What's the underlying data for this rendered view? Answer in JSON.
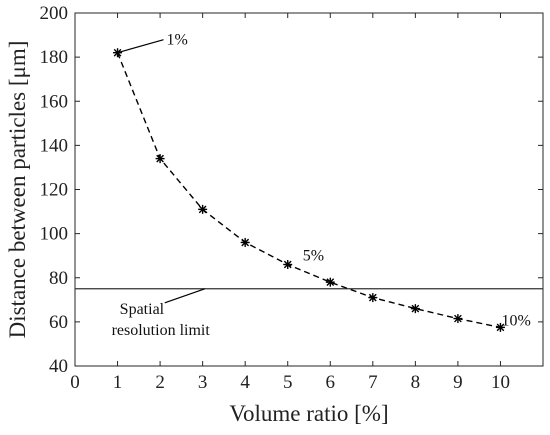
{
  "chart_data": {
    "type": "line",
    "xlabel": "Volume ratio [%]",
    "ylabel": "Distance between particles [μm]",
    "xlim": [
      0,
      11
    ],
    "ylim": [
      40,
      200
    ],
    "xticks": [
      0,
      1,
      2,
      3,
      4,
      5,
      6,
      7,
      8,
      9,
      10
    ],
    "yticks": [
      40,
      60,
      80,
      100,
      120,
      140,
      160,
      180,
      200
    ],
    "grid": false,
    "series": [
      {
        "x": [
          1,
          2,
          3,
          4,
          5,
          6,
          7,
          8,
          9,
          10
        ],
        "values": [
          182,
          134,
          111,
          96,
          86,
          78,
          71,
          66,
          61.5,
          57.5
        ],
        "line_style": "dashed",
        "marker": "asterisk",
        "color": "#000000"
      }
    ],
    "reference_line": {
      "y": 75,
      "color": "#333333"
    },
    "annotations": [
      {
        "text": "1%",
        "x": 1,
        "y": 182
      },
      {
        "text": "5%",
        "x": 5,
        "y": 86
      },
      {
        "text": "10%",
        "x": 10,
        "y": 57.5
      }
    ],
    "reference_label_lines": [
      "Spatial",
      "resolution limit"
    ]
  }
}
